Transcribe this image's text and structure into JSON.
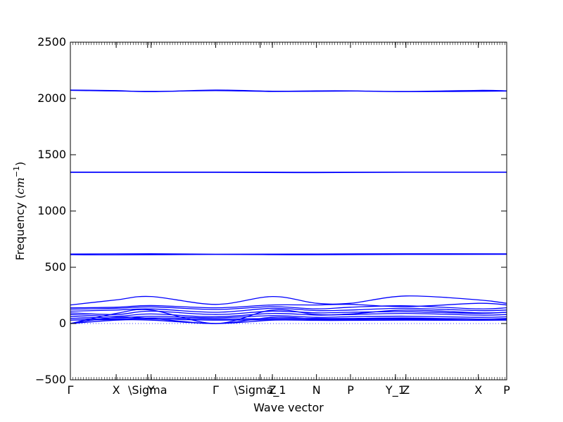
{
  "chart_data": {
    "type": "line",
    "title": "",
    "xlabel": "Wave vector",
    "ylabel_text": "Frequency (",
    "ylabel_unit": "cm",
    "ylabel_exp": "−1",
    "ylabel_close": ")",
    "ylim": [
      -500,
      2500
    ],
    "yticks": [
      -500,
      0,
      500,
      1000,
      1500,
      2000,
      2500
    ],
    "ytick_labels": [
      "−500",
      "0",
      "500",
      "1000",
      "1500",
      "2000",
      "2500"
    ],
    "xlim": [
      0,
      1
    ],
    "xtick_positions": [
      0.0,
      0.105,
      0.177,
      0.185,
      0.333,
      0.435,
      0.463,
      0.564,
      0.642,
      0.745,
      0.769,
      0.935,
      1.0
    ],
    "xtick_labels": [
      "Γ",
      "X",
      "\\Sigma",
      "Y",
      "Γ",
      "\\Sigma_1",
      "Z",
      "N",
      "P",
      "Y_1",
      "Z",
      "X",
      "P"
    ],
    "grid": false,
    "line_color": "#0000ff",
    "zero_line_style": "dotted",
    "series": [
      {
        "x": [
          0,
          0.105,
          0.185,
          0.333,
          0.463,
          0.564,
          0.642,
          0.769,
          0.935,
          1.0
        ],
        "y": [
          2075,
          2070,
          2060,
          2075,
          2065,
          2068,
          2068,
          2062,
          2072,
          2068
        ]
      },
      {
        "x": [
          0,
          0.185,
          0.333,
          0.463,
          0.642,
          0.769,
          1.0
        ],
        "y": [
          2072,
          2063,
          2070,
          2062,
          2066,
          2060,
          2066
        ]
      },
      {
        "x": [
          0,
          0.333,
          0.564,
          0.769,
          1.0
        ],
        "y": [
          1346,
          1346,
          1344,
          1346,
          1346
        ]
      },
      {
        "x": [
          0,
          0.333,
          0.564,
          0.769,
          1.0
        ],
        "y": [
          1343,
          1343,
          1341,
          1344,
          1344
        ]
      },
      {
        "x": [
          0,
          0.185,
          0.333,
          0.564,
          0.769,
          1.0
        ],
        "y": [
          618,
          620,
          616,
          618,
          620,
          619
        ]
      },
      {
        "x": [
          0,
          0.105,
          0.333,
          0.463,
          0.564,
          0.769,
          1.0
        ],
        "y": [
          612,
          610,
          614,
          612,
          611,
          614,
          615
        ]
      },
      {
        "x": [
          0,
          0.105,
          0.185,
          0.333,
          0.463,
          0.564,
          0.642,
          0.769,
          0.935,
          1.0
        ],
        "y": [
          165,
          210,
          240,
          170,
          240,
          180,
          180,
          245,
          210,
          180
        ]
      },
      {
        "x": [
          0,
          0.105,
          0.185,
          0.333,
          0.463,
          0.564,
          0.642,
          0.769,
          0.935,
          1.0
        ],
        "y": [
          140,
          145,
          160,
          140,
          165,
          165,
          170,
          150,
          180,
          165
        ]
      },
      {
        "x": [
          0,
          0.105,
          0.185,
          0.333,
          0.463,
          0.564,
          0.642,
          0.769,
          0.935,
          1.0
        ],
        "y": [
          128,
          135,
          148,
          125,
          150,
          130,
          145,
          158,
          130,
          140
        ]
      },
      {
        "x": [
          0,
          0.105,
          0.185,
          0.333,
          0.463,
          0.564,
          0.642,
          0.769,
          0.935,
          1.0
        ],
        "y": [
          110,
          120,
          130,
          100,
          135,
          115,
          120,
          135,
          115,
          120
        ]
      },
      {
        "x": [
          0,
          0.105,
          0.185,
          0.333,
          0.463,
          0.564,
          0.642,
          0.769,
          0.935,
          1.0
        ],
        "y": [
          95,
          80,
          110,
          80,
          110,
          95,
          100,
          105,
          90,
          100
        ]
      },
      {
        "x": [
          0,
          0.105,
          0.185,
          0.333,
          0.463,
          0.564,
          0.642,
          0.769,
          0.935,
          1.0
        ],
        "y": [
          80,
          65,
          85,
          60,
          90,
          75,
          80,
          90,
          75,
          80
        ]
      },
      {
        "x": [
          0,
          0.105,
          0.185,
          0.333,
          0.463,
          0.564,
          0.642,
          0.769,
          0.935,
          1.0
        ],
        "y": [
          62,
          50,
          65,
          50,
          70,
          55,
          60,
          65,
          55,
          60
        ]
      },
      {
        "x": [
          0,
          0.105,
          0.185,
          0.333,
          0.463,
          0.564,
          0.642,
          0.769,
          0.935,
          1.0
        ],
        "y": [
          45,
          40,
          50,
          40,
          45,
          45,
          45,
          50,
          40,
          45
        ]
      },
      {
        "x": [
          0,
          0.105,
          0.185,
          0.333,
          0.463,
          0.564,
          0.642,
          0.769,
          0.935,
          1.0
        ],
        "y": [
          30,
          35,
          40,
          30,
          35,
          35,
          35,
          38,
          30,
          35
        ]
      },
      {
        "x": [
          0,
          0.105,
          0.185,
          0.333,
          0.463,
          0.564,
          0.642,
          0.769,
          0.935,
          1.0
        ],
        "y": [
          0,
          30,
          30,
          0,
          30,
          28,
          28,
          30,
          28,
          30
        ]
      },
      {
        "x": [
          0,
          0.105,
          0.185,
          0.333,
          0.463,
          0.564,
          0.642,
          0.769,
          0.935,
          1.0
        ],
        "y": [
          0,
          55,
          45,
          0,
          55,
          40,
          40,
          45,
          40,
          40
        ]
      },
      {
        "x": [
          0,
          0.105,
          0.185,
          0.333,
          0.463,
          0.564,
          0.642,
          0.769,
          0.935,
          1.0
        ],
        "y": [
          0,
          90,
          120,
          0,
          120,
          80,
          85,
          120,
          95,
          100
        ]
      }
    ]
  }
}
